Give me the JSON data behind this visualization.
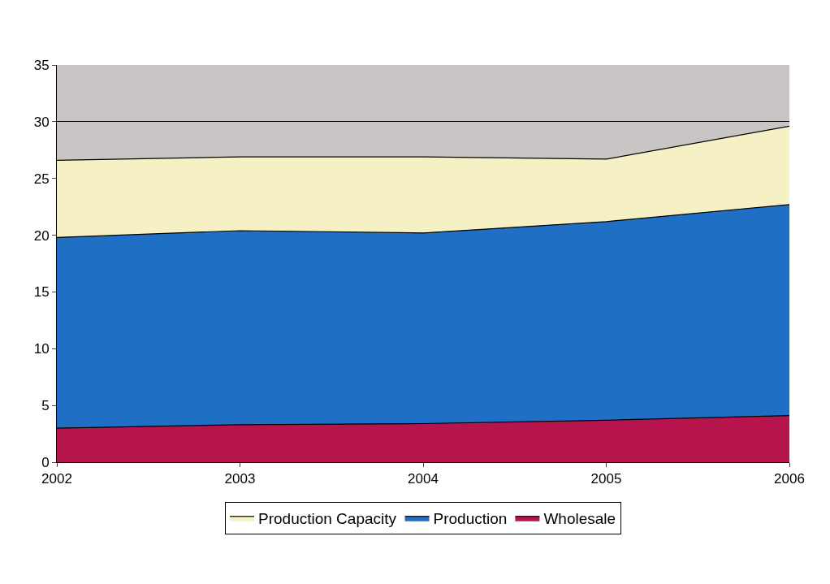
{
  "chart_data": {
    "type": "area",
    "x": [
      2002,
      2003,
      2004,
      2005,
      2006
    ],
    "series": [
      {
        "name": "Production Capacity",
        "color": "#f6f1c4",
        "values": [
          26.6,
          26.9,
          26.9,
          26.7,
          29.6
        ]
      },
      {
        "name": "Production",
        "color": "#1f6fc4",
        "values": [
          19.8,
          20.4,
          20.2,
          21.2,
          22.7
        ]
      },
      {
        "name": "Wholesale",
        "color": "#b5154c",
        "values": [
          3.0,
          3.3,
          3.4,
          3.7,
          4.1
        ]
      }
    ],
    "xlim": [
      2002,
      2006
    ],
    "xticks": [
      2002,
      2003,
      2004,
      2005,
      2006
    ],
    "ylim": [
      0,
      35
    ],
    "yticks": [
      0,
      5,
      10,
      15,
      20,
      25,
      30,
      35
    ],
    "grid": "y",
    "legend": "bottom"
  }
}
